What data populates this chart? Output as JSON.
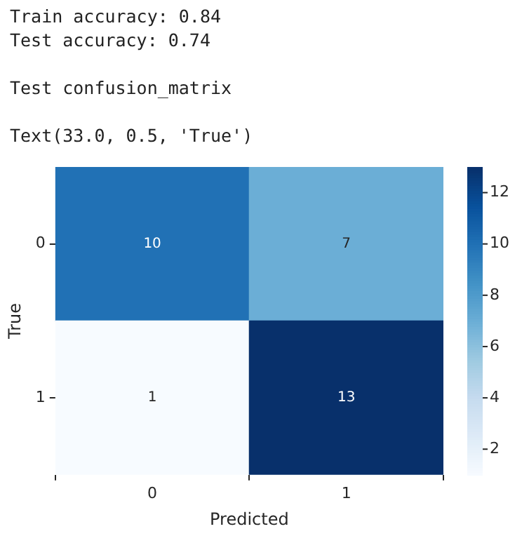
{
  "chart_data": {
    "type": "heatmap",
    "annotations": [
      "Train accuracy: 0.84",
      "Test accuracy: 0.74",
      "Test confusion_matrix",
      "Text(33.0, 0.5, 'True')"
    ],
    "xlabel": "Predicted",
    "ylabel": "True",
    "categories": [
      "0",
      "1"
    ],
    "y_categories": [
      "0",
      "1"
    ],
    "cells": [
      [
        10,
        7
      ],
      [
        1,
        13
      ]
    ],
    "clim": [
      1,
      13
    ],
    "cticks": [
      2,
      4,
      6,
      8,
      10,
      12
    ],
    "data_labels": true
  }
}
